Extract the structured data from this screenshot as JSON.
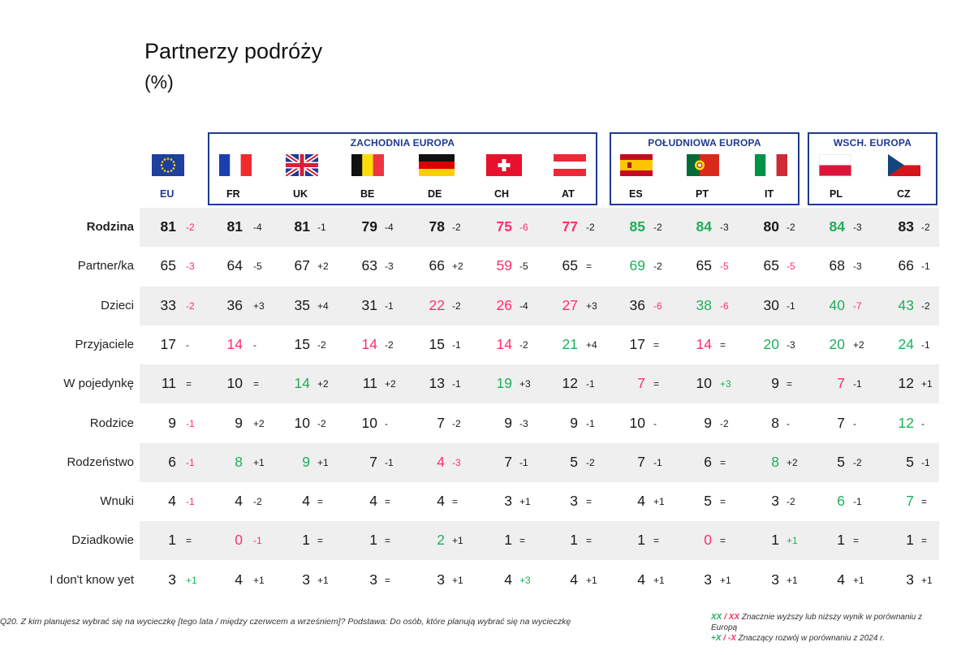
{
  "header": {
    "title": "Partnerzy podróży",
    "subtitle": "(%)"
  },
  "regions": [
    {
      "label": "ZACHODNIA EUROPA"
    },
    {
      "label": "POŁUDNIOWA EUROPA"
    },
    {
      "label": "WSCH. EUROPA"
    }
  ],
  "columns": [
    {
      "code": "EU",
      "flag": "eu"
    },
    {
      "code": "FR",
      "flag": "fr"
    },
    {
      "code": "UK",
      "flag": "uk"
    },
    {
      "code": "BE",
      "flag": "be"
    },
    {
      "code": "DE",
      "flag": "de"
    },
    {
      "code": "CH",
      "flag": "ch"
    },
    {
      "code": "AT",
      "flag": "at"
    },
    {
      "code": "ES",
      "flag": "es"
    },
    {
      "code": "PT",
      "flag": "pt"
    },
    {
      "code": "IT",
      "flag": "it"
    },
    {
      "code": "PL",
      "flag": "pl"
    },
    {
      "code": "CZ",
      "flag": "cz"
    }
  ],
  "colors": {
    "green": "#1fae5a",
    "red": "#ff2e6a",
    "black": "#1a1a1a",
    "region_border": "#1f3a8f",
    "row_shade": "#efefef"
  },
  "chart_data": {
    "type": "table",
    "title": "Partnerzy podróży",
    "subtitle": "(%)",
    "columns": [
      "EU",
      "FR",
      "UK",
      "BE",
      "DE",
      "CH",
      "AT",
      "ES",
      "PT",
      "IT",
      "PL",
      "CZ"
    ],
    "rows": [
      {
        "label": "Rodzina",
        "bold": true,
        "values": [
          81,
          81,
          81,
          79,
          78,
          75,
          77,
          85,
          84,
          80,
          84,
          83
        ],
        "value_colors": [
          "black",
          "black",
          "black",
          "black",
          "black",
          "red",
          "red",
          "green",
          "green",
          "black",
          "green",
          "black"
        ],
        "deltas": [
          "-2",
          "-4",
          "-1",
          "-4",
          "-2",
          "-6",
          "-2",
          "-2",
          "-3",
          "-2",
          "-3",
          "-2"
        ],
        "delta_colors": [
          "red",
          "black",
          "black",
          "black",
          "black",
          "red",
          "black",
          "black",
          "black",
          "black",
          "black",
          "black"
        ]
      },
      {
        "label": "Partner/ka",
        "bold": false,
        "values": [
          65,
          64,
          67,
          63,
          66,
          59,
          65,
          69,
          65,
          65,
          68,
          66
        ],
        "value_colors": [
          "black",
          "black",
          "black",
          "black",
          "black",
          "red",
          "black",
          "green",
          "black",
          "black",
          "black",
          "black"
        ],
        "deltas": [
          "-3",
          "-5",
          "+2",
          "-3",
          "+2",
          "-5",
          "=",
          "-2",
          "-5",
          "-5",
          "-3",
          "-1"
        ],
        "delta_colors": [
          "red",
          "black",
          "black",
          "black",
          "black",
          "black",
          "black",
          "black",
          "red",
          "red",
          "black",
          "black"
        ]
      },
      {
        "label": "Dzieci",
        "bold": false,
        "values": [
          33,
          36,
          35,
          31,
          22,
          26,
          27,
          36,
          38,
          30,
          40,
          43
        ],
        "value_colors": [
          "black",
          "black",
          "black",
          "black",
          "red",
          "red",
          "red",
          "black",
          "green",
          "black",
          "green",
          "green"
        ],
        "deltas": [
          "-2",
          "+3",
          "+4",
          "-1",
          "-2",
          "-4",
          "+3",
          "-6",
          "-6",
          "-1",
          "-7",
          "-2"
        ],
        "delta_colors": [
          "red",
          "black",
          "black",
          "black",
          "black",
          "black",
          "black",
          "red",
          "red",
          "black",
          "red",
          "black"
        ]
      },
      {
        "label": "Przyjaciele",
        "bold": false,
        "values": [
          17,
          14,
          15,
          14,
          15,
          14,
          21,
          17,
          14,
          20,
          20,
          24
        ],
        "value_colors": [
          "black",
          "red",
          "black",
          "red",
          "black",
          "red",
          "green",
          "black",
          "red",
          "green",
          "green",
          "green"
        ],
        "deltas": [
          "-",
          "-",
          "-2",
          "-2",
          "-1",
          "-2",
          "+4",
          "=",
          "=",
          "-3",
          "+2",
          "-1"
        ],
        "delta_colors": [
          "black",
          "black",
          "black",
          "black",
          "black",
          "black",
          "black",
          "black",
          "black",
          "black",
          "black",
          "black"
        ]
      },
      {
        "label": "W pojedynkę",
        "bold": false,
        "values": [
          11,
          10,
          14,
          11,
          13,
          19,
          12,
          7,
          10,
          9,
          7,
          12
        ],
        "value_colors": [
          "black",
          "black",
          "green",
          "black",
          "black",
          "green",
          "black",
          "red",
          "black",
          "black",
          "red",
          "black"
        ],
        "deltas": [
          "=",
          "=",
          "+2",
          "+2",
          "-1",
          "+3",
          "-1",
          "=",
          "+3",
          "=",
          "-1",
          "+1"
        ],
        "delta_colors": [
          "black",
          "black",
          "black",
          "black",
          "black",
          "black",
          "black",
          "black",
          "green",
          "black",
          "black",
          "black"
        ]
      },
      {
        "label": "Rodzice",
        "bold": false,
        "values": [
          9,
          9,
          10,
          10,
          7,
          9,
          9,
          10,
          9,
          8,
          7,
          12
        ],
        "value_colors": [
          "black",
          "black",
          "black",
          "black",
          "black",
          "black",
          "black",
          "black",
          "black",
          "black",
          "black",
          "green"
        ],
        "deltas": [
          "-1",
          "+2",
          "-2",
          "-",
          "-2",
          "-3",
          "-1",
          "-",
          "-2",
          "-",
          "-",
          "-"
        ],
        "delta_colors": [
          "red",
          "black",
          "black",
          "black",
          "black",
          "black",
          "black",
          "black",
          "black",
          "black",
          "black",
          "black"
        ]
      },
      {
        "label": "Rodzeństwo",
        "bold": false,
        "values": [
          6,
          8,
          9,
          7,
          4,
          7,
          5,
          7,
          6,
          8,
          5,
          5
        ],
        "value_colors": [
          "black",
          "green",
          "green",
          "black",
          "red",
          "black",
          "black",
          "black",
          "black",
          "green",
          "black",
          "black"
        ],
        "deltas": [
          "-1",
          "+1",
          "+1",
          "-1",
          "-3",
          "-1",
          "-2",
          "-1",
          "=",
          "+2",
          "-2",
          "-1"
        ],
        "delta_colors": [
          "red",
          "black",
          "black",
          "black",
          "red",
          "black",
          "black",
          "black",
          "black",
          "black",
          "black",
          "black"
        ]
      },
      {
        "label": "Wnuki",
        "bold": false,
        "values": [
          4,
          4,
          4,
          4,
          4,
          3,
          3,
          4,
          5,
          3,
          6,
          7
        ],
        "value_colors": [
          "black",
          "black",
          "black",
          "black",
          "black",
          "black",
          "black",
          "black",
          "black",
          "black",
          "green",
          "green"
        ],
        "deltas": [
          "-1",
          "-2",
          "=",
          "=",
          "=",
          "+1",
          "=",
          "+1",
          "=",
          "-2",
          "-1",
          "="
        ],
        "delta_colors": [
          "red",
          "black",
          "black",
          "black",
          "black",
          "black",
          "black",
          "black",
          "black",
          "black",
          "black",
          "black"
        ]
      },
      {
        "label": "Dziadkowie",
        "bold": false,
        "values": [
          1,
          0,
          1,
          1,
          2,
          1,
          1,
          1,
          0,
          1,
          1,
          1
        ],
        "value_colors": [
          "black",
          "red",
          "black",
          "black",
          "green",
          "black",
          "black",
          "black",
          "red",
          "black",
          "black",
          "black"
        ],
        "deltas": [
          "=",
          "-1",
          "=",
          "=",
          "+1",
          "=",
          "=",
          "=",
          "=",
          "+1",
          "=",
          "="
        ],
        "delta_colors": [
          "black",
          "red",
          "black",
          "black",
          "black",
          "black",
          "black",
          "black",
          "black",
          "green",
          "black",
          "black"
        ]
      },
      {
        "label": "I don't know yet",
        "bold": false,
        "values": [
          3,
          4,
          3,
          3,
          3,
          4,
          4,
          4,
          3,
          3,
          4,
          3
        ],
        "value_colors": [
          "black",
          "black",
          "black",
          "black",
          "black",
          "black",
          "black",
          "black",
          "black",
          "black",
          "black",
          "black"
        ],
        "deltas": [
          "+1",
          "+1",
          "+1",
          "=",
          "+1",
          "+3",
          "+1",
          "+1",
          "+1",
          "+1",
          "+1",
          "+1"
        ],
        "delta_colors": [
          "green",
          "black",
          "black",
          "black",
          "black",
          "green",
          "black",
          "black",
          "black",
          "black",
          "black",
          "black"
        ]
      }
    ]
  },
  "footer": {
    "question": "Q20. Z kim planujesz wybrać się na wycieczkę [tego lata / między czerwcem a wrześniem]? Podstawa: Do osób, które planują wybrać się na wycieczkę",
    "legend_xx_green": "XX",
    "legend_slash": " / ",
    "legend_xx_red": "XX",
    "legend_line1_text": " Znacznie wyższy lub niższy wynik w porównaniu z Europą",
    "legend_plus_x": "+X",
    "legend_minus_x": "-X",
    "legend_line2_text": " Znaczący rozwój w porównaniu z 2024 r."
  }
}
